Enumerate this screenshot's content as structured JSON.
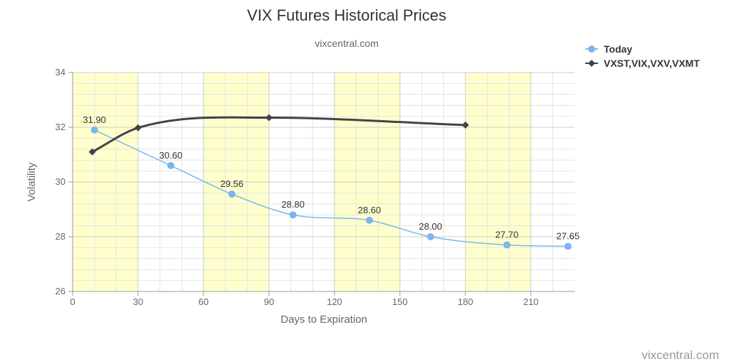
{
  "chart_data": {
    "type": "line",
    "title": "VIX Futures Historical Prices",
    "subtitle": "vixcentral.com",
    "xlabel": "Days to Expiration",
    "ylabel": "Volatility",
    "xlim": [
      0,
      230
    ],
    "ylim": [
      26,
      34
    ],
    "xticks": [
      0,
      30,
      60,
      90,
      120,
      150,
      180,
      210
    ],
    "yticks": [
      26,
      28,
      30,
      32,
      34
    ],
    "grid": true,
    "legend_position": "top-right",
    "band_color": "#ffffcc",
    "series": [
      {
        "name": "Today",
        "color": "#7cb5ec",
        "marker": "circle",
        "smooth": true,
        "data_labels": true,
        "points": [
          {
            "x": 10,
            "y": 31.9,
            "label": "31.90"
          },
          {
            "x": 45,
            "y": 30.6,
            "label": "30.60"
          },
          {
            "x": 73,
            "y": 29.56,
            "label": "29.56"
          },
          {
            "x": 101,
            "y": 28.8,
            "label": "28.80"
          },
          {
            "x": 136,
            "y": 28.6,
            "label": "28.60"
          },
          {
            "x": 164,
            "y": 28.0,
            "label": "28.00"
          },
          {
            "x": 199,
            "y": 27.7,
            "label": "27.70"
          },
          {
            "x": 227,
            "y": 27.65,
            "label": "27.65"
          }
        ]
      },
      {
        "name": "VXST,VIX,VXV,VXMT",
        "color": "#434348",
        "marker": "diamond",
        "smooth": true,
        "data_labels": false,
        "points": [
          {
            "x": 9,
            "y": 31.1
          },
          {
            "x": 30,
            "y": 31.98
          },
          {
            "x": 90,
            "y": 32.35
          },
          {
            "x": 180,
            "y": 32.08
          }
        ]
      }
    ]
  },
  "credit": "vixcentral.com"
}
